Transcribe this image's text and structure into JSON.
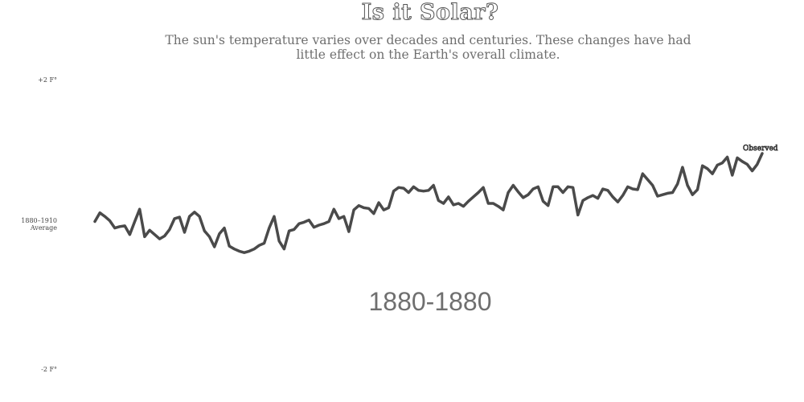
{
  "chart_data": {
    "type": "line",
    "title": "Is it Solar?",
    "subtitle": "The sun's temperature varies over decades and centuries. These changes have had little effect on the Earth's overall climate.",
    "period_label": "1880-1880",
    "y_axis": {
      "range": [
        -2,
        2
      ],
      "tick_labels": [
        {
          "value": 2,
          "text": "+2 F°"
        },
        {
          "value": 0,
          "text": "1880–1910",
          "text2": "Average"
        },
        {
          "value": -2,
          "text": "-2 F°"
        }
      ]
    },
    "x_range": [
      1880,
      2014
    ],
    "series": [
      {
        "name": "Observed",
        "color": "#4a4a4a",
        "x": [
          1880,
          1881,
          1882,
          1883,
          1884,
          1885,
          1886,
          1887,
          1888,
          1889,
          1890,
          1891,
          1892,
          1893,
          1894,
          1895,
          1896,
          1897,
          1898,
          1899,
          1900,
          1901,
          1902,
          1903,
          1904,
          1905,
          1906,
          1907,
          1908,
          1909,
          1910,
          1911,
          1912,
          1913,
          1914,
          1915,
          1916,
          1917,
          1918,
          1919,
          1920,
          1921,
          1922,
          1923,
          1924,
          1925,
          1926,
          1927,
          1928,
          1929,
          1930,
          1931,
          1932,
          1933,
          1934,
          1935,
          1936,
          1937,
          1938,
          1939,
          1940,
          1941,
          1942,
          1943,
          1944,
          1945,
          1946,
          1947,
          1948,
          1949,
          1950,
          1951,
          1952,
          1953,
          1954,
          1955,
          1956,
          1957,
          1958,
          1959,
          1960,
          1961,
          1962,
          1963,
          1964,
          1965,
          1966,
          1967,
          1968,
          1969,
          1970,
          1971,
          1972,
          1973,
          1974,
          1975,
          1976,
          1977,
          1978,
          1979,
          1980,
          1981,
          1982,
          1983,
          1984,
          1985,
          1986,
          1987,
          1988,
          1989,
          1990,
          1991,
          1992,
          1993,
          1994,
          1995,
          1996,
          1997,
          1998,
          1999,
          2000,
          2001,
          2002,
          2003,
          2004,
          2005,
          2006,
          2007,
          2008,
          2009,
          2010,
          2011,
          2012,
          2013,
          2014
        ],
        "y": [
          0.05,
          0.17,
          0.12,
          0.06,
          -0.04,
          -0.02,
          -0.01,
          -0.13,
          0.05,
          0.22,
          -0.16,
          -0.07,
          -0.13,
          -0.19,
          -0.15,
          -0.06,
          0.09,
          0.11,
          -0.1,
          0.12,
          0.18,
          0.12,
          -0.08,
          -0.16,
          -0.3,
          -0.12,
          -0.04,
          -0.29,
          -0.33,
          -0.36,
          -0.38,
          -0.36,
          -0.33,
          -0.28,
          -0.25,
          -0.04,
          0.12,
          -0.22,
          -0.33,
          -0.08,
          -0.06,
          0.02,
          0.04,
          0.07,
          -0.03,
          0.0,
          0.02,
          0.05,
          0.22,
          0.09,
          0.12,
          -0.09,
          0.21,
          0.27,
          0.24,
          0.23,
          0.16,
          0.31,
          0.21,
          0.24,
          0.47,
          0.52,
          0.51,
          0.45,
          0.53,
          0.48,
          0.47,
          0.48,
          0.55,
          0.34,
          0.3,
          0.39,
          0.28,
          0.3,
          0.26,
          0.33,
          0.39,
          0.45,
          0.52,
          0.3,
          0.3,
          0.26,
          0.21,
          0.45,
          0.55,
          0.46,
          0.38,
          0.42,
          0.5,
          0.53,
          0.33,
          0.27,
          0.53,
          0.53,
          0.45,
          0.53,
          0.52,
          0.14,
          0.34,
          0.38,
          0.41,
          0.37,
          0.5,
          0.48,
          0.39,
          0.32,
          0.41,
          0.53,
          0.5,
          0.49,
          0.71,
          0.63,
          0.55,
          0.4,
          0.42,
          0.44,
          0.45,
          0.57,
          0.8,
          0.55,
          0.42,
          0.49,
          0.82,
          0.78,
          0.71,
          0.83,
          0.86,
          0.94,
          0.69,
          0.93,
          0.88,
          0.84,
          0.75,
          0.84,
          0.99
        ]
      }
    ],
    "grid": false,
    "legend": "inline-end-label"
  }
}
